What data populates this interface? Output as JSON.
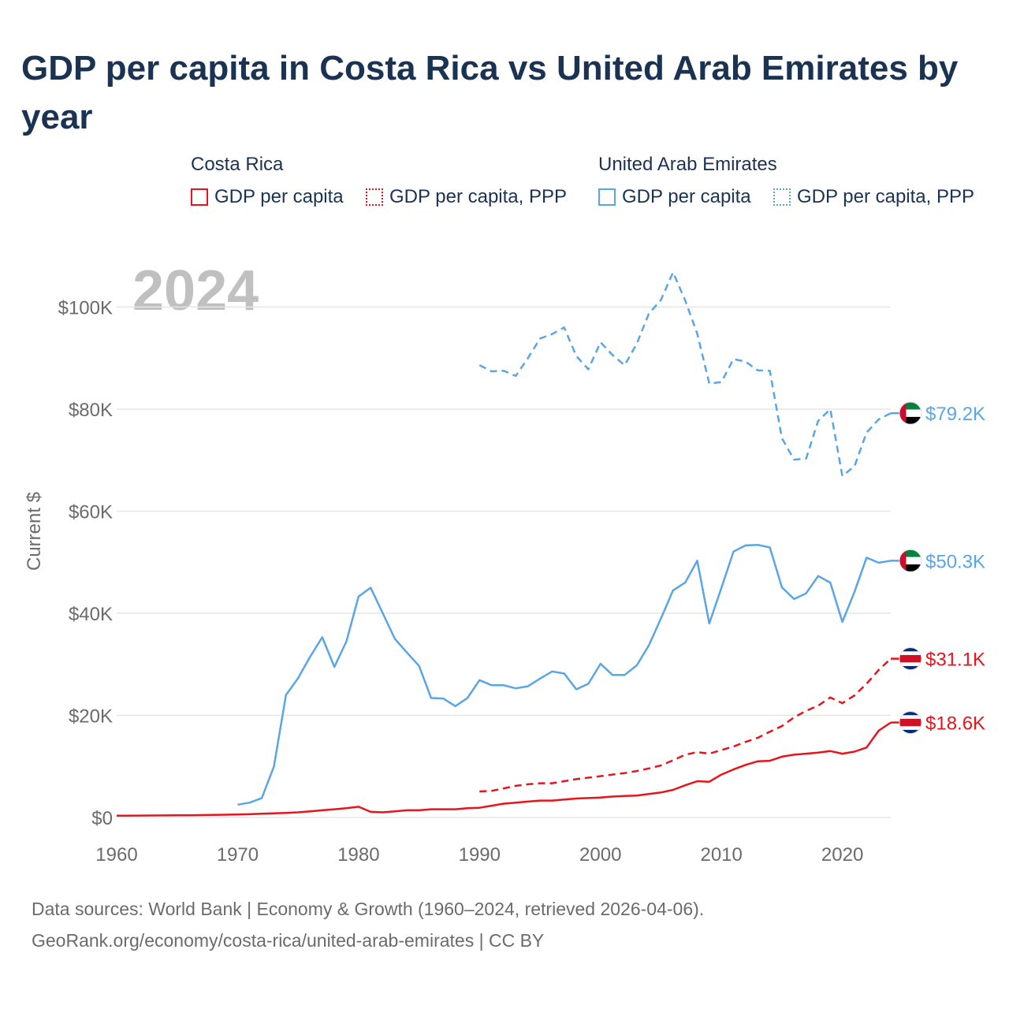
{
  "title": "GDP per capita in Costa Rica vs United Arab Emirates by year",
  "legend": {
    "groups": [
      {
        "name": "Costa Rica",
        "color": "#e8141c",
        "items": [
          {
            "label": "GDP per capita",
            "style": "solid"
          },
          {
            "label": "GDP per capita, PPP",
            "style": "dotted"
          }
        ]
      },
      {
        "name": "United Arab Emirates",
        "color": "#5aa5e6",
        "items": [
          {
            "label": "GDP per capita",
            "style": "solid"
          },
          {
            "label": "GDP per capita, PPP",
            "style": "dotted"
          }
        ]
      }
    ]
  },
  "year_label": "2024",
  "footer": {
    "line1": "Data sources: World Bank | Economy & Growth (1960–2024, retrieved 2026-04-06).",
    "line2": "GeoRank.org/economy/costa-rica/united-arab-emirates | CC BY"
  },
  "colors": {
    "costa_rica": "#e8141c",
    "uae": "#5aa5e6",
    "title": "#1a3352",
    "axis": "#6b6b6b",
    "grid": "#e6e6e6",
    "year": "#c0c0c0"
  },
  "chart_data": {
    "type": "line",
    "title": "GDP per capita in Costa Rica vs United Arab Emirates by year",
    "xlabel": "",
    "ylabel": "Current $",
    "xlim": [
      1960,
      2024
    ],
    "ylim": [
      0,
      110000
    ],
    "x_ticks": [
      1960,
      1970,
      1980,
      1990,
      2000,
      2010,
      2020
    ],
    "y_ticks": [
      0,
      20000,
      40000,
      60000,
      80000,
      100000
    ],
    "y_tick_labels": [
      "$0",
      "$20K",
      "$40K",
      "$60K",
      "$80K",
      "$100K"
    ],
    "grid": true,
    "series": [
      {
        "name": "Costa Rica GDP per capita",
        "country": "Costa Rica",
        "style": "solid",
        "color": "#e8141c",
        "end_label": "$18.6K",
        "x_start": 1960,
        "values": [
          350,
          360,
          370,
          380,
          400,
          420,
          440,
          470,
          500,
          540,
          580,
          640,
          720,
          820,
          900,
          1000,
          1200,
          1400,
          1600,
          1800,
          2100,
          1100,
          1000,
          1200,
          1400,
          1400,
          1600,
          1600,
          1600,
          1800,
          1900,
          2300,
          2700,
          2900,
          3100,
          3300,
          3300,
          3500,
          3700,
          3800,
          3900,
          4100,
          4200,
          4300,
          4600,
          4900,
          5400,
          6300,
          7100,
          7000,
          8400,
          9400,
          10300,
          11000,
          11100,
          11900,
          12300,
          12500,
          12700,
          13000,
          12500,
          12900,
          13700,
          17000,
          18600
        ]
      },
      {
        "name": "Costa Rica GDP per capita, PPP",
        "country": "Costa Rica",
        "style": "dashed",
        "color": "#e8141c",
        "end_label": "$31.1K",
        "x_start": 1990,
        "values": [
          5100,
          5200,
          5700,
          6200,
          6500,
          6700,
          6700,
          7100,
          7500,
          7800,
          8100,
          8400,
          8700,
          9100,
          9600,
          10200,
          11200,
          12300,
          12800,
          12500,
          13200,
          13900,
          14800,
          15600,
          16800,
          17900,
          19600,
          20900,
          21900,
          23500,
          22400,
          23900,
          26200,
          28900,
          31100
        ]
      },
      {
        "name": "United Arab Emirates GDP per capita",
        "country": "United Arab Emirates",
        "style": "solid",
        "color": "#5aa5e6",
        "end_label": "$50.3K",
        "x_start": 1970,
        "values": [
          2500,
          2900,
          3800,
          10000,
          24000,
          27300,
          31500,
          35300,
          29500,
          34500,
          43300,
          45000,
          40000,
          35000,
          32300,
          29700,
          23400,
          23300,
          21800,
          23400,
          26900,
          25900,
          25900,
          25300,
          25700,
          27200,
          28600,
          28200,
          25100,
          26200,
          30100,
          27900,
          27900,
          29800,
          33700,
          39000,
          44500,
          46000,
          50300,
          38000,
          45000,
          52100,
          53300,
          53400,
          52900,
          45100,
          42800,
          43900,
          47300,
          46000,
          38300,
          44200,
          50900,
          49900,
          50300
        ]
      },
      {
        "name": "United Arab Emirates GDP per capita, PPP",
        "country": "United Arab Emirates",
        "style": "dashed",
        "color": "#5aa5e6",
        "end_label": "$79.2K",
        "x_start": 1990,
        "values": [
          88600,
          87400,
          87500,
          86500,
          90000,
          93800,
          94700,
          96000,
          90400,
          87800,
          93100,
          90600,
          88600,
          92800,
          98700,
          101400,
          106800,
          101300,
          94800,
          85000,
          85300,
          89800,
          89300,
          87600,
          87500,
          74300,
          70100,
          70300,
          77700,
          80000,
          66900,
          68800,
          75400,
          78000,
          79200
        ]
      }
    ]
  }
}
